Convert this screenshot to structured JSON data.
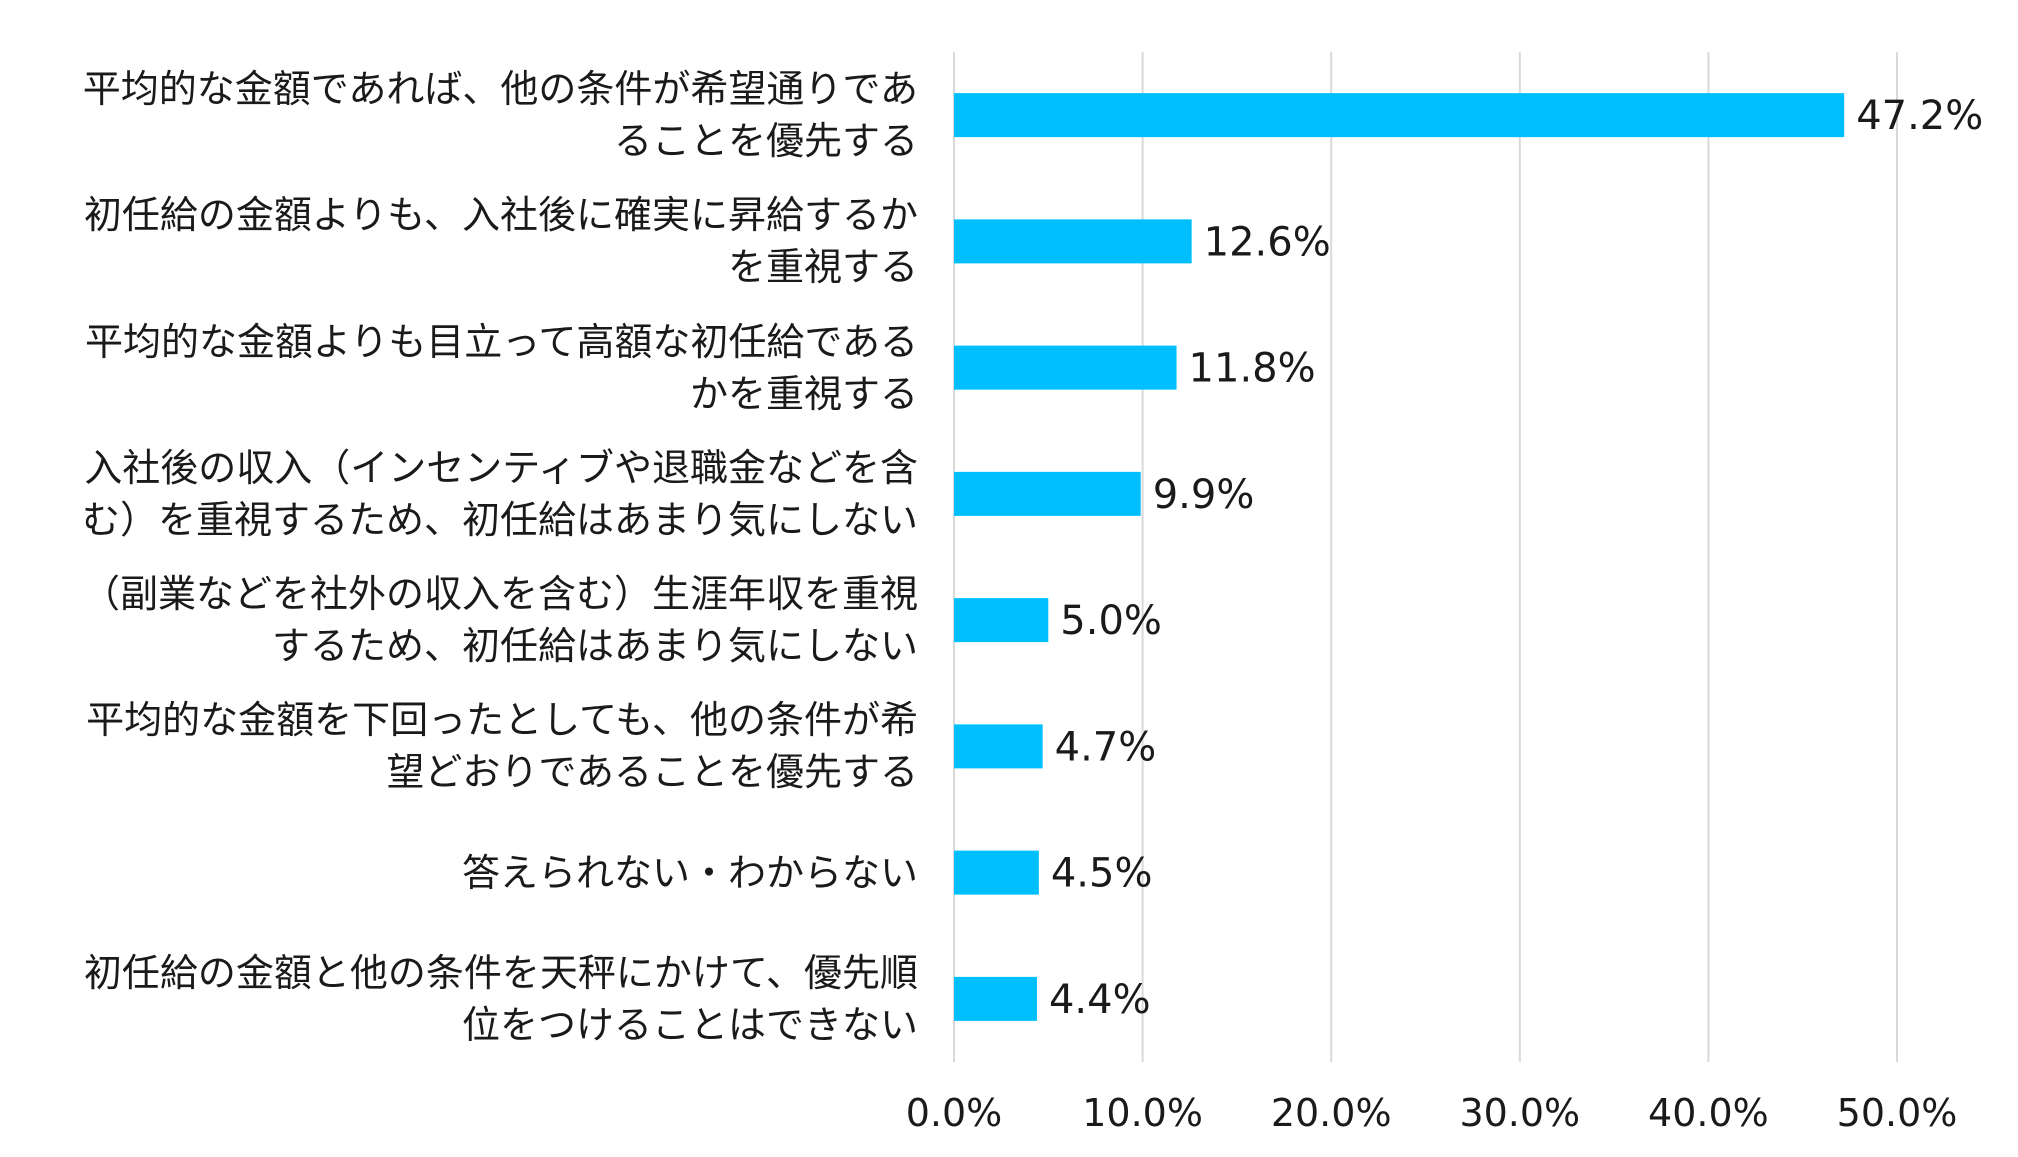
{
  "chart_data": {
    "type": "bar",
    "orientation": "horizontal",
    "categories": [
      [
        "平均的な金額であれば、他の条件が希望通りであ",
        "ることを優先する"
      ],
      [
        "初任給の金額よりも、入社後に確実に昇給するか",
        "を重視する"
      ],
      [
        "平均的な金額よりも目立って高額な初任給である",
        "かを重視する"
      ],
      [
        "入社後の収入（インセンティブや退職金などを含",
        "む）を重視するため、初任給はあまり気にしない"
      ],
      [
        "（副業などを社外の収入を含む）生涯年収を重視",
        "するため、初任給はあまり気にしない"
      ],
      [
        "平均的な金額を下回ったとしても、他の条件が希",
        "望どおりであることを優先する"
      ],
      [
        "答えられない・わからない"
      ],
      [
        "初任給の金額と他の条件を天秤にかけて、優先順",
        "位をつけることはできない"
      ]
    ],
    "values": [
      47.2,
      12.6,
      11.8,
      9.9,
      5.0,
      4.7,
      4.5,
      4.4
    ],
    "value_labels": [
      "47.2%",
      "12.6%",
      "11.8%",
      "9.9%",
      "5.0%",
      "4.7%",
      "4.5%",
      "4.4%"
    ],
    "xlim": [
      0,
      50
    ],
    "xticks": [
      0,
      10,
      20,
      30,
      40,
      50
    ],
    "xtick_labels": [
      "0.0%",
      "10.0%",
      "20.0%",
      "30.0%",
      "40.0%",
      "50.0%"
    ],
    "grid": true,
    "bar_color": "#00BFFF",
    "grid_color": "#d9d9d9"
  }
}
